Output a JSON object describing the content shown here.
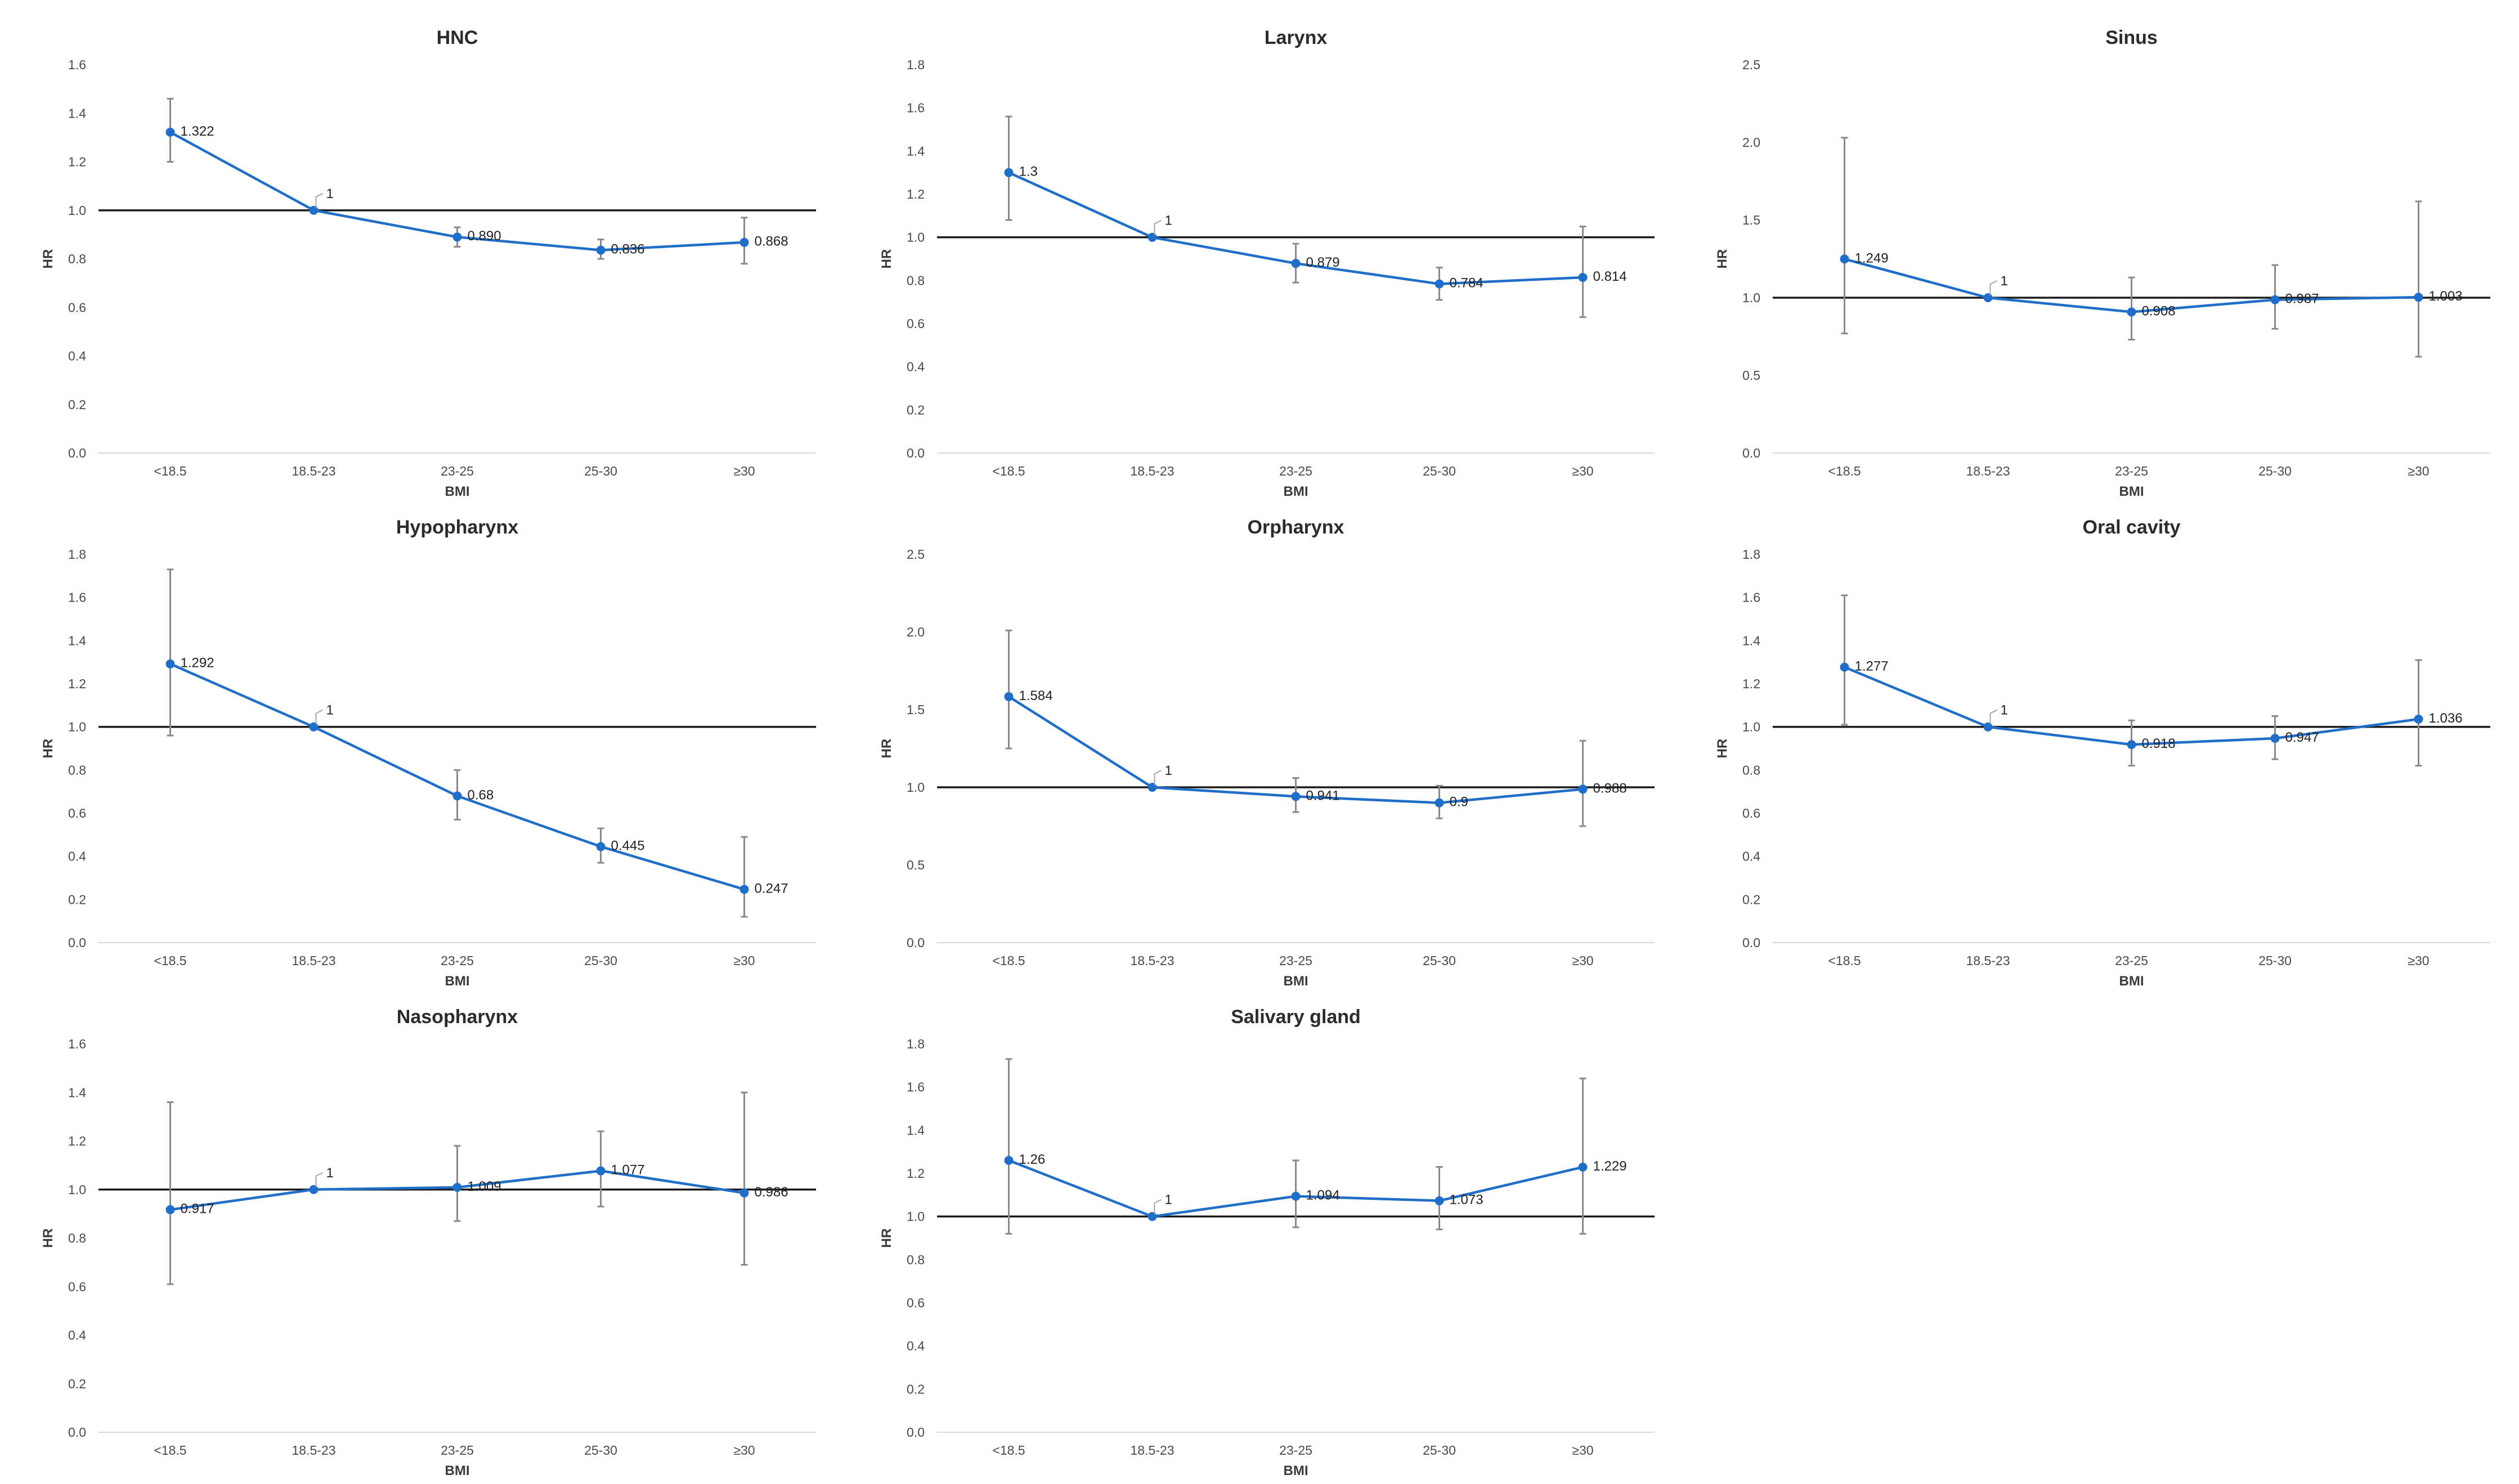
{
  "colors": {
    "series": "#1f6ec9",
    "reference": "#1a1a1a",
    "error_bar": "#8a8a8a",
    "axis": "#d9d9d9"
  },
  "chart_data": [
    {
      "type": "line",
      "title": "HNC",
      "xlabel": "BMI",
      "ylabel": "HR",
      "categories": [
        "<18.5",
        "18.5-23",
        "23-25",
        "25-30",
        "≥30"
      ],
      "values": [
        1.322,
        1,
        0.89,
        0.836,
        0.868
      ],
      "labels": [
        "1.322",
        "1",
        "0.890",
        "0.836",
        "0.868"
      ],
      "ci_low": [
        1.2,
        1,
        0.85,
        0.8,
        0.78
      ],
      "ci_high": [
        1.46,
        1,
        0.93,
        0.88,
        0.97
      ],
      "ylim": [
        0,
        1.6
      ],
      "yticks": [
        "0.0",
        "0.2",
        "0.4",
        "0.6",
        "0.8",
        "1.0",
        "1.2",
        "1.4",
        "1.6"
      ],
      "reference": 1.0
    },
    {
      "type": "line",
      "title": "Larynx",
      "xlabel": "BMI",
      "ylabel": "HR",
      "categories": [
        "<18.5",
        "18.5-23",
        "23-25",
        "25-30",
        "≥30"
      ],
      "values": [
        1.3,
        1,
        0.879,
        0.784,
        0.814
      ],
      "labels": [
        "1.3",
        "1",
        "0.879",
        "0.784",
        "0.814"
      ],
      "ci_low": [
        1.08,
        1,
        0.79,
        0.71,
        0.63
      ],
      "ci_high": [
        1.56,
        1,
        0.97,
        0.86,
        1.05
      ],
      "ylim": [
        0,
        1.8
      ],
      "yticks": [
        "0.0",
        "0.2",
        "0.4",
        "0.6",
        "0.8",
        "1.0",
        "1.2",
        "1.4",
        "1.6",
        "1.8"
      ],
      "reference": 1.0
    },
    {
      "type": "line",
      "title": "Sinus",
      "xlabel": "BMI",
      "ylabel": "HR",
      "categories": [
        "<18.5",
        "18.5-23",
        "23-25",
        "25-30",
        "≥30"
      ],
      "values": [
        1.249,
        1,
        0.908,
        0.987,
        1.003
      ],
      "labels": [
        "1.249",
        "1",
        "0.908",
        "0.987",
        "1.003"
      ],
      "ci_low": [
        0.77,
        1,
        0.73,
        0.8,
        0.62
      ],
      "ci_high": [
        2.03,
        1,
        1.13,
        1.21,
        1.62
      ],
      "ylim": [
        0,
        2.5
      ],
      "yticks": [
        "0.0",
        "0.5",
        "1.0",
        "1.5",
        "2.0",
        "2.5"
      ],
      "reference": 1.0
    },
    {
      "type": "line",
      "title": "Hypopharynx",
      "xlabel": "BMI",
      "ylabel": "HR",
      "categories": [
        "<18.5",
        "18.5-23",
        "23-25",
        "25-30",
        "≥30"
      ],
      "values": [
        1.292,
        1,
        0.68,
        0.445,
        0.247
      ],
      "labels": [
        "1.292",
        "1",
        "0.68",
        "0.445",
        "0.247"
      ],
      "ci_low": [
        0.96,
        1,
        0.57,
        0.37,
        0.12
      ],
      "ci_high": [
        1.73,
        1,
        0.8,
        0.53,
        0.49
      ],
      "ylim": [
        0,
        1.8
      ],
      "yticks": [
        "0.0",
        "0.2",
        "0.4",
        "0.6",
        "0.8",
        "1.0",
        "1.2",
        "1.4",
        "1.6",
        "1.8"
      ],
      "reference": 1.0
    },
    {
      "type": "line",
      "title": "Orpharynx",
      "xlabel": "BMI",
      "ylabel": "HR",
      "categories": [
        "<18.5",
        "18.5-23",
        "23-25",
        "25-30",
        "≥30"
      ],
      "values": [
        1.584,
        1,
        0.941,
        0.9,
        0.988
      ],
      "labels": [
        "1.584",
        "1",
        "0.941",
        "0.9",
        "0.988"
      ],
      "ci_low": [
        1.25,
        1,
        0.84,
        0.8,
        0.75
      ],
      "ci_high": [
        2.01,
        1,
        1.06,
        1.01,
        1.3
      ],
      "ylim": [
        0,
        2.5
      ],
      "yticks": [
        "0.0",
        "0.5",
        "1.0",
        "1.5",
        "2.0",
        "2.5"
      ],
      "reference": 1.0
    },
    {
      "type": "line",
      "title": "Oral cavity",
      "xlabel": "BMI",
      "ylabel": "HR",
      "categories": [
        "<18.5",
        "18.5-23",
        "23-25",
        "25-30",
        "≥30"
      ],
      "values": [
        1.277,
        1,
        0.918,
        0.947,
        1.036
      ],
      "labels": [
        "1.277",
        "1",
        "0.918",
        "0.947",
        "1.036"
      ],
      "ci_low": [
        1.01,
        1,
        0.82,
        0.85,
        0.82
      ],
      "ci_high": [
        1.61,
        1,
        1.03,
        1.05,
        1.31
      ],
      "ylim": [
        0,
        1.8
      ],
      "yticks": [
        "0.0",
        "0.2",
        "0.4",
        "0.6",
        "0.8",
        "1.0",
        "1.2",
        "1.4",
        "1.6",
        "1.8"
      ],
      "reference": 1.0
    },
    {
      "type": "line",
      "title": "Nasopharynx",
      "xlabel": "BMI",
      "ylabel": "HR",
      "categories": [
        "<18.5",
        "18.5-23",
        "23-25",
        "25-30",
        "≥30"
      ],
      "values": [
        0.917,
        1,
        1.009,
        1.077,
        0.986
      ],
      "labels": [
        "0.917",
        "1",
        "1.009",
        "1.077",
        "0.986"
      ],
      "ci_low": [
        0.61,
        1,
        0.87,
        0.93,
        0.69
      ],
      "ci_high": [
        1.36,
        1,
        1.18,
        1.24,
        1.4
      ],
      "ylim": [
        0,
        1.6
      ],
      "yticks": [
        "0.0",
        "0.2",
        "0.4",
        "0.6",
        "0.8",
        "1.0",
        "1.2",
        "1.4",
        "1.6"
      ],
      "reference": 1.0
    },
    {
      "type": "line",
      "title": "Salivary gland",
      "xlabel": "BMI",
      "ylabel": "HR",
      "categories": [
        "<18.5",
        "18.5-23",
        "23-25",
        "25-30",
        "≥30"
      ],
      "values": [
        1.26,
        1,
        1.094,
        1.073,
        1.229
      ],
      "labels": [
        "1.26",
        "1",
        "1.094",
        "1.073",
        "1.229"
      ],
      "ci_low": [
        0.92,
        1,
        0.95,
        0.94,
        0.92
      ],
      "ci_high": [
        1.73,
        1,
        1.26,
        1.23,
        1.64
      ],
      "ylim": [
        0,
        1.8
      ],
      "yticks": [
        "0.0",
        "0.2",
        "0.4",
        "0.6",
        "0.8",
        "1.0",
        "1.2",
        "1.4",
        "1.6",
        "1.8"
      ],
      "reference": 1.0
    }
  ]
}
